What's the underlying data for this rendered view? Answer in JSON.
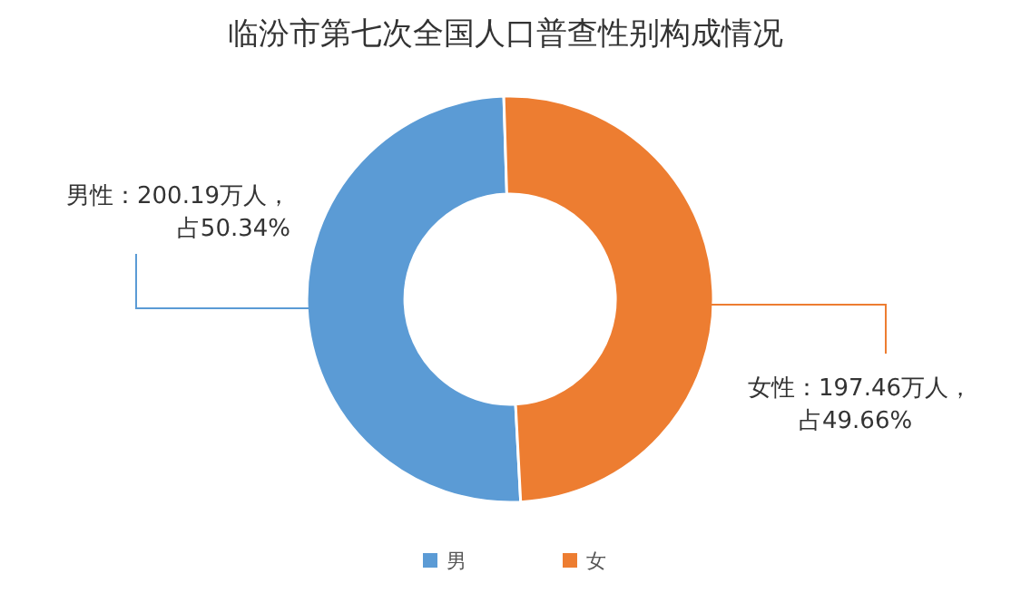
{
  "chart_data": {
    "type": "donut",
    "title": "临汾市第七次全国人口普查性别构成情况",
    "categories": [
      "男",
      "女"
    ],
    "values": [
      200.19,
      197.46
    ],
    "colors": [
      "#5b9bd5",
      "#ed7d31"
    ],
    "value_labels": [
      "男性：200.19万人，占50.34%",
      "女性：197.46万人，占49.66%"
    ],
    "legend": "bottom"
  }
}
